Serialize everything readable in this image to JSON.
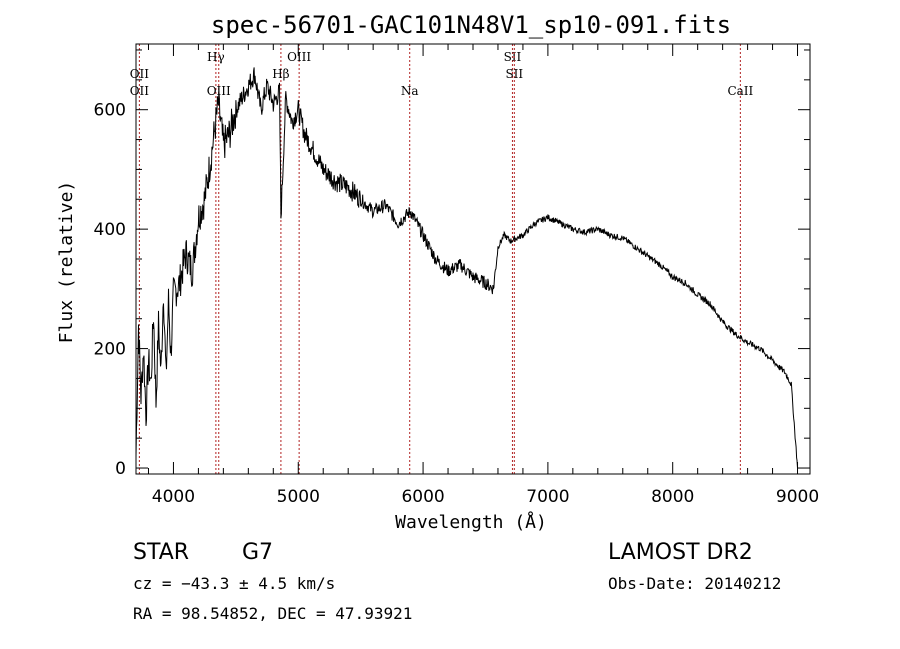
{
  "chart_data": {
    "type": "line",
    "title": "spec-56701-GAC101N48V1_sp10-091.fits",
    "xlabel": "Wavelength (Å)",
    "ylabel": "Flux (relative)",
    "xlim": [
      3700,
      9100
    ],
    "ylim": [
      -10,
      710
    ],
    "xticks": [
      4000,
      5000,
      6000,
      7000,
      8000,
      9000
    ],
    "yticks": [
      0,
      200,
      400,
      600
    ],
    "tick_labels_x": [
      "4000",
      "5000",
      "6000",
      "7000",
      "8000",
      "9000"
    ],
    "tick_labels_y": [
      "0",
      "200",
      "400",
      "600"
    ],
    "grid": false,
    "line_color": "#000000",
    "marker_color": "#b22222",
    "series": [
      {
        "x": [
          3700,
          3720,
          3740,
          3760,
          3780,
          3800,
          3820,
          3840,
          3860,
          3880,
          3900,
          3920,
          3940,
          3960,
          3980,
          4000,
          4050,
          4100,
          4150,
          4200,
          4250,
          4300,
          4340,
          4360,
          4400,
          4450,
          4500,
          4550,
          4600,
          4650,
          4700,
          4750,
          4800,
          4850,
          4861,
          4900,
          4950,
          5000,
          5050,
          5100,
          5150,
          5200,
          5300,
          5400,
          5500,
          5600,
          5700,
          5800,
          5900,
          6000,
          6100,
          6200,
          6300,
          6400,
          6500,
          6563,
          6600,
          6650,
          6700,
          6800,
          6900,
          7000,
          7100,
          7200,
          7300,
          7400,
          7500,
          7600,
          7700,
          7800,
          7900,
          8000,
          8100,
          8200,
          8300,
          8400,
          8500,
          8600,
          8700,
          8800,
          8900,
          8950,
          9000
        ],
        "y": [
          20,
          240,
          120,
          200,
          90,
          180,
          140,
          260,
          110,
          240,
          160,
          300,
          150,
          280,
          190,
          290,
          310,
          360,
          330,
          420,
          450,
          520,
          580,
          610,
          540,
          560,
          600,
          620,
          640,
          660,
          600,
          640,
          610,
          630,
          420,
          620,
          580,
          600,
          560,
          540,
          520,
          500,
          480,
          470,
          450,
          430,
          440,
          410,
          430,
          390,
          350,
          330,
          340,
          320,
          310,
          300,
          370,
          390,
          380,
          390,
          410,
          420,
          410,
          400,
          395,
          400,
          390,
          385,
          370,
          355,
          340,
          320,
          310,
          290,
          275,
          245,
          225,
          210,
          200,
          180,
          160,
          140,
          0
        ]
      }
    ],
    "lines": [
      {
        "x": 3727,
        "labels": [
          "OII",
          "OII"
        ],
        "positions": [
          1,
          2
        ]
      },
      {
        "x": 4340,
        "labels": [
          "Hγ"
        ],
        "positions": [
          0
        ]
      },
      {
        "x": 4363,
        "labels": [
          "OIII"
        ],
        "positions": [
          2
        ]
      },
      {
        "x": 4861,
        "labels": [
          "Hβ"
        ],
        "positions": [
          1
        ]
      },
      {
        "x": 5007,
        "labels": [
          "OIII"
        ],
        "positions": [
          0
        ]
      },
      {
        "x": 5893,
        "labels": [
          "Na"
        ],
        "positions": [
          2
        ]
      },
      {
        "x": 6716,
        "labels": [
          "SII"
        ],
        "positions": [
          0
        ]
      },
      {
        "x": 6731,
        "labels": [
          "SII"
        ],
        "positions": [
          1
        ]
      },
      {
        "x": 8542,
        "labels": [
          "CaII"
        ],
        "positions": [
          2
        ]
      }
    ]
  },
  "info": {
    "star_class": "STAR",
    "subclass": "G7",
    "survey": "LAMOST DR2",
    "cz": "cz = −43.3 ± 4.5 km/s",
    "obs_date": "Obs-Date: 20140212",
    "coords": "RA =  98.54852, DEC =  47.93921"
  }
}
